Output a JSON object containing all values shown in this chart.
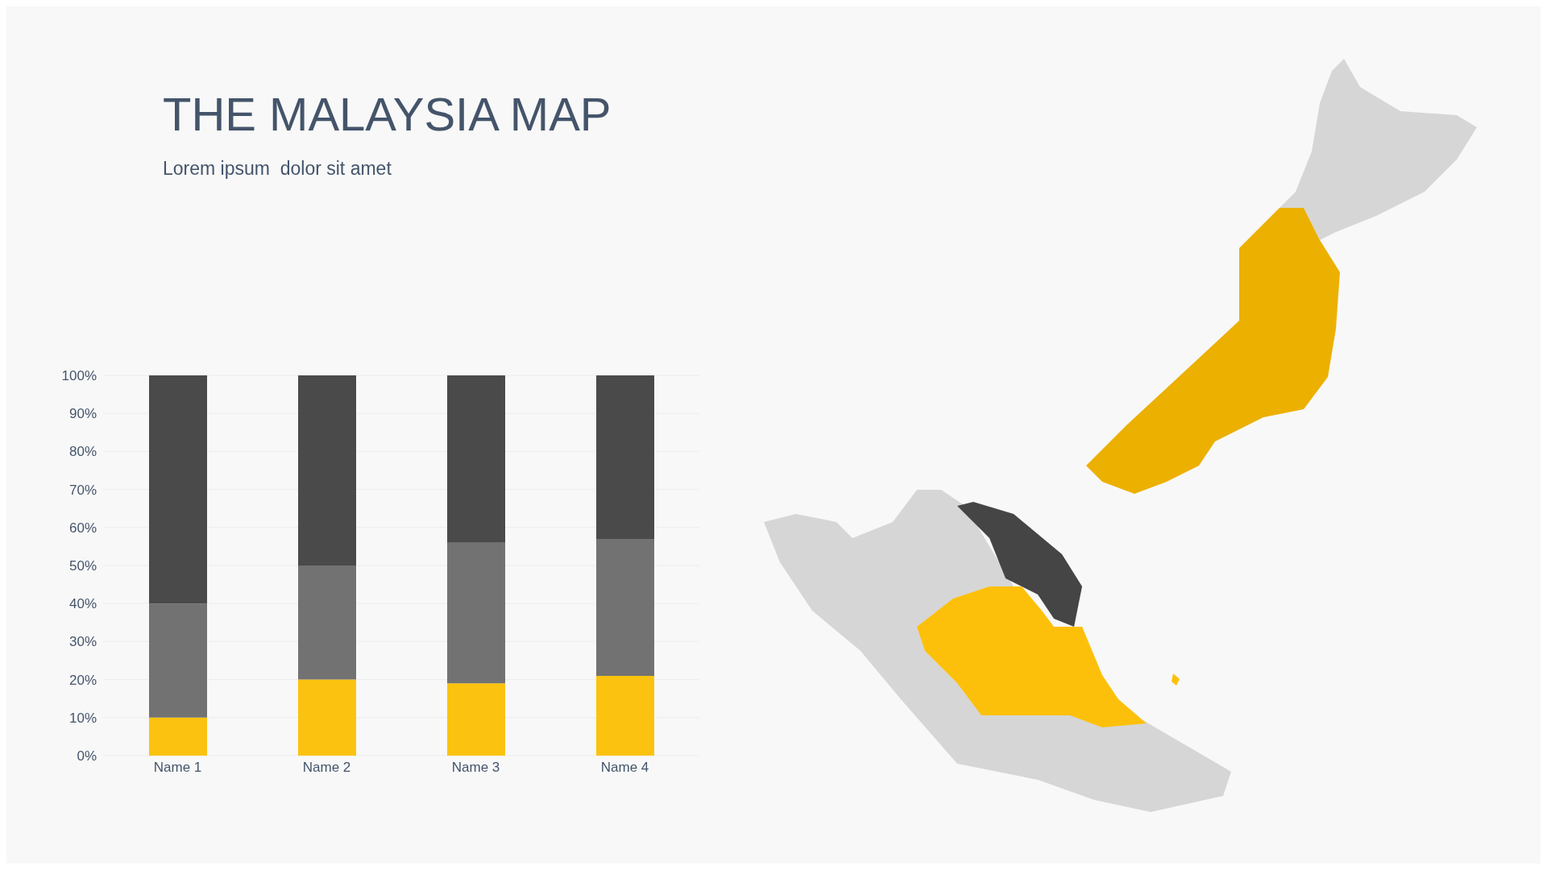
{
  "chart_data": {
    "type": "bar",
    "title": "THE MALAYSIA MAP",
    "subtitle": "Lorem ipsum  dolor sit amet",
    "categories": [
      "Name 1",
      "Name 2",
      "Name 3",
      "Name 4"
    ],
    "stacked": true,
    "series": [
      {
        "color": "#fbc30f",
        "values": [
          10,
          20,
          19,
          21
        ]
      },
      {
        "color": "#727272",
        "values": [
          30,
          30,
          37,
          36
        ]
      },
      {
        "color": "#4a4a4a",
        "values": [
          60,
          50,
          44,
          43
        ]
      }
    ],
    "ylim": [
      0,
      100
    ],
    "yticks": [
      {
        "value": 0,
        "label": "0%"
      },
      {
        "value": 10,
        "label": "10%"
      },
      {
        "value": 20,
        "label": "20%"
      },
      {
        "value": 30,
        "label": "30%"
      },
      {
        "value": 40,
        "label": "40%"
      },
      {
        "value": 50,
        "label": "50%"
      },
      {
        "value": 60,
        "label": "60%"
      },
      {
        "value": 70,
        "label": "70%"
      },
      {
        "value": 80,
        "label": "80%"
      },
      {
        "value": 90,
        "label": "90%"
      },
      {
        "value": 100,
        "label": "100%"
      }
    ],
    "grid": "y",
    "legend": false
  }
}
